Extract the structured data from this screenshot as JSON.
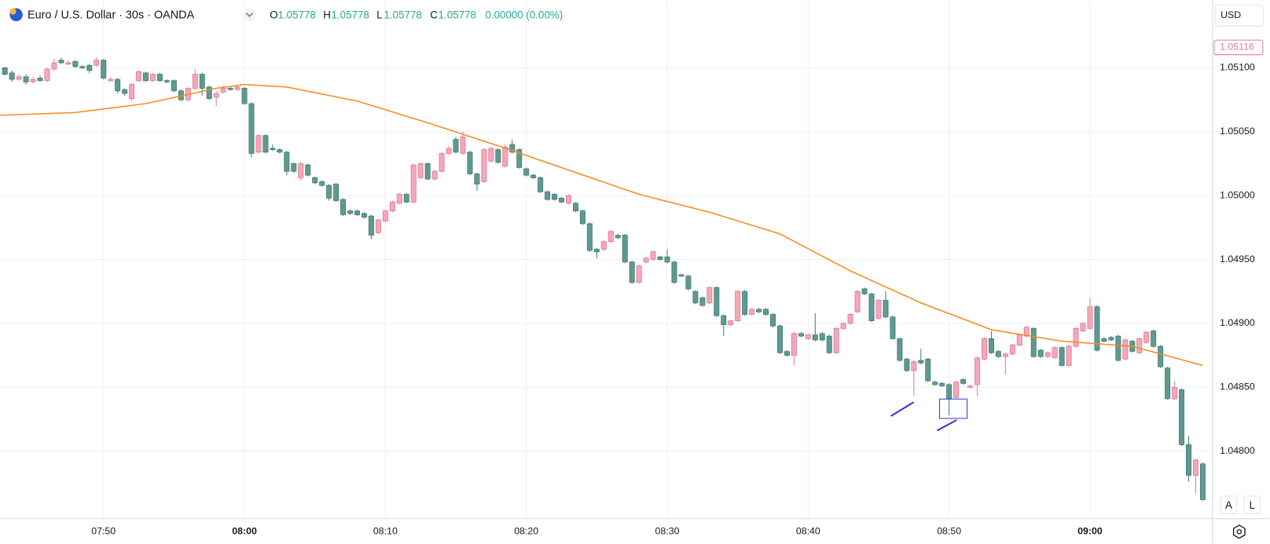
{
  "chart_data": {
    "type": "candlestick",
    "legend": {
      "symbol": "Euro / U.S. Dollar · 30s · OANDA",
      "ohlc": [
        {
          "label": "O",
          "value": "1.05778"
        },
        {
          "label": "H",
          "value": "1.05778"
        },
        {
          "label": "L",
          "value": "1.05778"
        },
        {
          "label": "C",
          "value": "1.05778"
        }
      ],
      "change": "0.00000 (0.00%)"
    },
    "currency": "USD",
    "buttons": [
      "A",
      "L"
    ],
    "up_color": "#f4a7b9",
    "up_border": "#e07b94",
    "down_color": "#5f9a92",
    "down_border": "#447d75",
    "grid": true,
    "xlim": [
      -0.69,
      171.15
    ],
    "ylim": [
      1.04747,
      1.05153
    ],
    "xticks": [
      {
        "value": 14,
        "label": "07:50"
      },
      {
        "value": 34,
        "label": "08:00",
        "bold": true
      },
      {
        "value": 54,
        "label": "08:10"
      },
      {
        "value": 74,
        "label": "08:20"
      },
      {
        "value": 94,
        "label": "08:30"
      },
      {
        "value": 114,
        "label": "08:40"
      },
      {
        "value": 134,
        "label": "08:50"
      },
      {
        "value": 154,
        "label": "09:00",
        "bold": true
      }
    ],
    "yticks": [
      {
        "value": 1.051,
        "label": "1.05100"
      },
      {
        "value": 1.0505,
        "label": "1.05050"
      },
      {
        "value": 1.05,
        "label": "1.05000"
      },
      {
        "value": 1.0495,
        "label": "1.04950"
      },
      {
        "value": 1.049,
        "label": "1.04900"
      },
      {
        "value": 1.0485,
        "label": "1.04850"
      },
      {
        "value": 1.048,
        "label": "1.04800"
      }
    ],
    "price_label": {
      "value": 1.05116,
      "label": "1.05116"
    },
    "ma": {
      "color": "#f68b1f",
      "x": [
        -0.69,
        0,
        10,
        20,
        30,
        34,
        40,
        50,
        60,
        70,
        80,
        90,
        100,
        110,
        120,
        130,
        140,
        150,
        160,
        170
      ],
      "values": [
        1.05063,
        1.05063,
        1.05065,
        1.05072,
        1.05084,
        1.05087,
        1.05085,
        1.05074,
        1.05057,
        1.05039,
        1.0502,
        1.05001,
        1.04987,
        1.0497,
        1.04941,
        1.04916,
        1.04895,
        1.04886,
        1.04882,
        1.04867
      ]
    },
    "ohlc": [
      [
        1.051,
        1.05101,
        1.05094,
        1.05095
      ],
      [
        1.05096,
        1.05098,
        1.05089,
        1.05091
      ],
      [
        1.05091,
        1.05095,
        1.0509,
        1.05093
      ],
      [
        1.05093,
        1.05095,
        1.05087,
        1.05089
      ],
      [
        1.05089,
        1.05093,
        1.05088,
        1.05091
      ],
      [
        1.05092,
        1.05094,
        1.05089,
        1.0509
      ],
      [
        1.0509,
        1.051,
        1.05089,
        1.05099
      ],
      [
        1.05099,
        1.05107,
        1.05098,
        1.05104
      ],
      [
        1.05106,
        1.05108,
        1.05103,
        1.05104
      ],
      [
        1.05103,
        1.05106,
        1.05102,
        1.05104
      ],
      [
        1.05105,
        1.05106,
        1.051,
        1.05101
      ],
      [
        1.05101,
        1.05102,
        1.05099,
        1.051
      ],
      [
        1.05102,
        1.05103,
        1.05096,
        1.05098
      ],
      [
        1.05102,
        1.05108,
        1.05101,
        1.05106
      ],
      [
        1.05106,
        1.05107,
        1.05091,
        1.05092
      ],
      [
        1.0509,
        1.05093,
        1.05089,
        1.05091
      ],
      [
        1.05091,
        1.05092,
        1.0508,
        1.05082
      ],
      [
        1.05083,
        1.05084,
        1.05078,
        1.0508
      ],
      [
        1.05076,
        1.05088,
        1.05074,
        1.05087
      ],
      [
        1.0509,
        1.05098,
        1.05089,
        1.05097
      ],
      [
        1.05096,
        1.05097,
        1.05089,
        1.0509
      ],
      [
        1.0509,
        1.05096,
        1.05089,
        1.05095
      ],
      [
        1.05095,
        1.05096,
        1.05089,
        1.0509
      ],
      [
        1.0509,
        1.05091,
        1.05088,
        1.05089
      ],
      [
        1.0509,
        1.05091,
        1.05081,
        1.05082
      ],
      [
        1.05082,
        1.05083,
        1.05074,
        1.05075
      ],
      [
        1.05075,
        1.05085,
        1.05074,
        1.05084
      ],
      [
        1.05084,
        1.05099,
        1.05083,
        1.05095
      ],
      [
        1.05095,
        1.05096,
        1.05078,
        1.05084
      ],
      [
        1.05085,
        1.05086,
        1.05075,
        1.05076
      ],
      [
        1.05077,
        1.05082,
        1.0507,
        1.0508
      ],
      [
        1.05081,
        1.05086,
        1.0508,
        1.05084
      ],
      [
        1.05084,
        1.05085,
        1.05082,
        1.05083
      ],
      [
        1.05083,
        1.05086,
        1.05082,
        1.05085
      ],
      [
        1.05084,
        1.05085,
        1.05071,
        1.05072
      ],
      [
        1.05072,
        1.05073,
        1.0503,
        1.05033
      ],
      [
        1.05034,
        1.05048,
        1.05033,
        1.05047
      ],
      [
        1.05047,
        1.05048,
        1.05033,
        1.05034
      ],
      [
        1.05037,
        1.0504,
        1.05035,
        1.05036
      ],
      [
        1.05036,
        1.05037,
        1.05033,
        1.05034
      ],
      [
        1.05034,
        1.05035,
        1.05016,
        1.05019
      ],
      [
        1.05025,
        1.05026,
        1.05018,
        1.05019
      ],
      [
        1.05014,
        1.05026,
        1.05012,
        1.05025
      ],
      [
        1.05024,
        1.05025,
        1.05015,
        1.05016
      ],
      [
        1.05014,
        1.05015,
        1.05009,
        1.0501
      ],
      [
        1.05011,
        1.05012,
        1.05007,
        1.05008
      ],
      [
        1.05008,
        1.05009,
        1.04996,
        1.04998
      ],
      [
        1.05009,
        1.0501,
        1.04995,
        1.04996
      ],
      [
        1.04997,
        1.04998,
        1.04984,
        1.04985
      ],
      [
        1.04988,
        1.04989,
        1.04985,
        1.04986
      ],
      [
        1.04988,
        1.04989,
        1.04984,
        1.04985
      ],
      [
        1.04986,
        1.04987,
        1.04982,
        1.04983
      ],
      [
        1.04984,
        1.04985,
        1.04966,
        1.04969
      ],
      [
        1.04971,
        1.04982,
        1.0497,
        1.04981
      ],
      [
        1.0498,
        1.04989,
        1.04979,
        1.04988
      ],
      [
        1.04988,
        1.04996,
        1.04987,
        1.04995
      ],
      [
        1.04994,
        1.05002,
        1.04993,
        1.05001
      ],
      [
        1.05001,
        1.05002,
        1.04994,
        1.04995
      ],
      [
        1.04995,
        1.05025,
        1.04994,
        1.05024
      ],
      [
        1.05014,
        1.05026,
        1.05013,
        1.05025
      ],
      [
        1.05025,
        1.05026,
        1.05012,
        1.05013
      ],
      [
        1.05013,
        1.0502,
        1.05012,
        1.05019
      ],
      [
        1.05019,
        1.05034,
        1.05018,
        1.05033
      ],
      [
        1.05033,
        1.05039,
        1.05032,
        1.05037
      ],
      [
        1.05044,
        1.05046,
        1.05033,
        1.05034
      ],
      [
        1.05033,
        1.0505,
        1.05032,
        1.05046
      ],
      [
        1.05034,
        1.05035,
        1.05016,
        1.05017
      ],
      [
        1.05017,
        1.05018,
        1.05004,
        1.05009
      ],
      [
        1.05011,
        1.05037,
        1.0501,
        1.05036
      ],
      [
        1.05027,
        1.05038,
        1.05026,
        1.05037
      ],
      [
        1.05036,
        1.05037,
        1.05025,
        1.05026
      ],
      [
        1.05023,
        1.0504,
        1.05022,
        1.05038
      ],
      [
        1.0504,
        1.05044,
        1.05033,
        1.05034
      ],
      [
        1.05036,
        1.05037,
        1.05021,
        1.05022
      ],
      [
        1.05021,
        1.05022,
        1.05015,
        1.05016
      ],
      [
        1.05016,
        1.05017,
        1.05013,
        1.05014
      ],
      [
        1.05014,
        1.05015,
        1.05002,
        1.05003
      ],
      [
        1.05003,
        1.05004,
        1.04996,
        1.04997
      ],
      [
        1.05001,
        1.05002,
        1.04996,
        1.04997
      ],
      [
        1.04998,
        1.04999,
        1.04994,
        1.04995
      ],
      [
        1.04994,
        1.05001,
        1.04993,
        1.05
      ],
      [
        1.04994,
        1.04995,
        1.04987,
        1.04988
      ],
      [
        1.04988,
        1.04989,
        1.04977,
        1.04978
      ],
      [
        1.04978,
        1.04979,
        1.04956,
        1.04957
      ],
      [
        1.04958,
        1.04959,
        1.04951,
        1.04956
      ],
      [
        1.04958,
        1.04965,
        1.04957,
        1.04964
      ],
      [
        1.04964,
        1.04973,
        1.04963,
        1.04972
      ],
      [
        1.04969,
        1.0497,
        1.04966,
        1.04967
      ],
      [
        1.04969,
        1.0497,
        1.04947,
        1.04948
      ],
      [
        1.04948,
        1.04949,
        1.04931,
        1.04932
      ],
      [
        1.04932,
        1.04946,
        1.04931,
        1.04945
      ],
      [
        1.04948,
        1.04952,
        1.04947,
        1.04951
      ],
      [
        1.0495,
        1.04957,
        1.04949,
        1.04956
      ],
      [
        1.04952,
        1.04953,
        1.04949,
        1.0495
      ],
      [
        1.04952,
        1.04958,
        1.04947,
        1.04948
      ],
      [
        1.04948,
        1.04949,
        1.04931,
        1.04932
      ],
      [
        1.04938,
        1.04939,
        1.04936,
        1.04937
      ],
      [
        1.04937,
        1.04938,
        1.04926,
        1.04927
      ],
      [
        1.04925,
        1.04926,
        1.04915,
        1.04916
      ],
      [
        1.0492,
        1.04921,
        1.04913,
        1.04914
      ],
      [
        1.04916,
        1.04929,
        1.04915,
        1.04928
      ],
      [
        1.04928,
        1.04929,
        1.04905,
        1.04906
      ],
      [
        1.04906,
        1.04907,
        1.0489,
        1.04899
      ],
      [
        1.04899,
        1.04903,
        1.04898,
        1.04902
      ],
      [
        1.04902,
        1.04926,
        1.04901,
        1.04925
      ],
      [
        1.04925,
        1.04926,
        1.04906,
        1.04907
      ],
      [
        1.04907,
        1.04912,
        1.04906,
        1.04911
      ],
      [
        1.04911,
        1.04912,
        1.04908,
        1.04909
      ],
      [
        1.04911,
        1.04912,
        1.04906,
        1.04907
      ],
      [
        1.04907,
        1.04908,
        1.04897,
        1.04898
      ],
      [
        1.04898,
        1.04899,
        1.04876,
        1.04877
      ],
      [
        1.04878,
        1.04879,
        1.04874,
        1.04875
      ],
      [
        1.04875,
        1.04893,
        1.04867,
        1.04892
      ],
      [
        1.04892,
        1.04893,
        1.04889,
        1.0489
      ],
      [
        1.04888,
        1.04892,
        1.04887,
        1.04891
      ],
      [
        1.04891,
        1.04908,
        1.04886,
        1.04887
      ],
      [
        1.04892,
        1.04893,
        1.04886,
        1.04887
      ],
      [
        1.0489,
        1.04891,
        1.04876,
        1.04877
      ],
      [
        1.04877,
        1.04897,
        1.04876,
        1.04896
      ],
      [
        1.04896,
        1.04901,
        1.04895,
        1.049
      ],
      [
        1.049,
        1.04908,
        1.04899,
        1.04907
      ],
      [
        1.04909,
        1.04926,
        1.04908,
        1.04925
      ],
      [
        1.04927,
        1.04928,
        1.04922,
        1.04923
      ],
      [
        1.04923,
        1.04924,
        1.04901,
        1.04902
      ],
      [
        1.04904,
        1.04919,
        1.04903,
        1.04918
      ],
      [
        1.04918,
        1.04925,
        1.04904,
        1.04905
      ],
      [
        1.04905,
        1.04906,
        1.04887,
        1.04888
      ],
      [
        1.04888,
        1.04889,
        1.0487,
        1.04871
      ],
      [
        1.04872,
        1.04873,
        1.04862,
        1.04863
      ],
      [
        1.04863,
        1.04871,
        1.04843,
        1.0487
      ],
      [
        1.04871,
        1.0488,
        1.04868,
        1.04869
      ],
      [
        1.04872,
        1.04873,
        1.04854,
        1.04855
      ],
      [
        1.04854,
        1.04855,
        1.04851,
        1.04852
      ],
      [
        1.04853,
        1.04854,
        1.0485,
        1.04851
      ],
      [
        1.04852,
        1.04853,
        1.04828,
        1.04841
      ],
      [
        1.04842,
        1.04855,
        1.04841,
        1.04854
      ],
      [
        1.04856,
        1.04857,
        1.04852,
        1.04853
      ],
      [
        1.0485,
        1.04852,
        1.04849,
        1.04851
      ],
      [
        1.04852,
        1.04874,
        1.04843,
        1.04873
      ],
      [
        1.04872,
        1.04889,
        1.04871,
        1.04888
      ],
      [
        1.04888,
        1.04894,
        1.04876,
        1.04877
      ],
      [
        1.04878,
        1.04879,
        1.04873,
        1.04874
      ],
      [
        1.04874,
        1.04877,
        1.0486,
        1.04876
      ],
      [
        1.04876,
        1.04884,
        1.04875,
        1.04883
      ],
      [
        1.04883,
        1.04892,
        1.04882,
        1.04891
      ],
      [
        1.0489,
        1.04898,
        1.04889,
        1.04897
      ],
      [
        1.04896,
        1.04897,
        1.04873,
        1.04874
      ],
      [
        1.04879,
        1.0488,
        1.04873,
        1.04874
      ],
      [
        1.04874,
        1.04878,
        1.04873,
        1.04877
      ],
      [
        1.04873,
        1.04882,
        1.04872,
        1.04881
      ],
      [
        1.04881,
        1.04882,
        1.04866,
        1.04867
      ],
      [
        1.04867,
        1.04883,
        1.04866,
        1.04882
      ],
      [
        1.04882,
        1.04897,
        1.04881,
        1.04896
      ],
      [
        1.04894,
        1.04901,
        1.04893,
        1.049
      ],
      [
        1.04896,
        1.0492,
        1.04895,
        1.04913
      ],
      [
        1.04913,
        1.04914,
        1.04878,
        1.04879
      ],
      [
        1.04888,
        1.04889,
        1.04885,
        1.04886
      ],
      [
        1.04889,
        1.0489,
        1.04886,
        1.04887
      ],
      [
        1.0489,
        1.04891,
        1.0487,
        1.04871
      ],
      [
        1.04872,
        1.04888,
        1.04871,
        1.04887
      ],
      [
        1.04886,
        1.04887,
        1.04877,
        1.04878
      ],
      [
        1.04877,
        1.04889,
        1.04876,
        1.04888
      ],
      [
        1.04885,
        1.04894,
        1.04884,
        1.04893
      ],
      [
        1.04894,
        1.04895,
        1.04881,
        1.04882
      ],
      [
        1.04882,
        1.04883,
        1.04865,
        1.04866
      ],
      [
        1.04865,
        1.04866,
        1.0484,
        1.04841
      ],
      [
        1.04841,
        1.04855,
        1.0484,
        1.0485
      ],
      [
        1.04848,
        1.04849,
        1.04804,
        1.04805
      ],
      [
        1.04805,
        1.04812,
        1.04776,
        1.04781
      ],
      [
        1.04781,
        1.04794,
        1.04767,
        1.04793
      ],
      [
        1.0479,
        1.04791,
        1.04761,
        1.04762
      ]
    ]
  }
}
